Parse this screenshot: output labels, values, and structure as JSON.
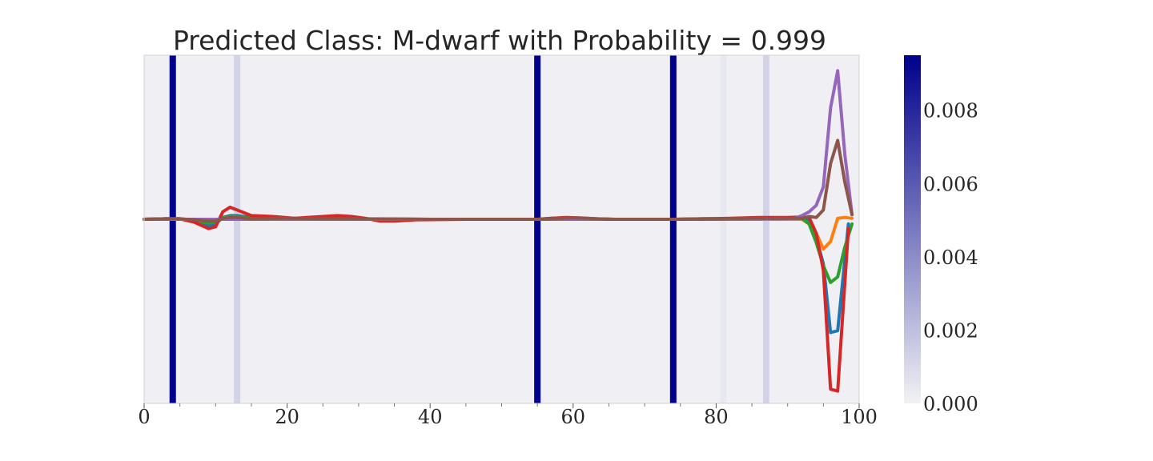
{
  "chart_data": {
    "type": "line",
    "title": "Predicted Class: M-dwarf with Probability = 0.999",
    "xlabel": "",
    "ylabel": "",
    "xlim": [
      0,
      100
    ],
    "ylim": [
      -1,
      1
    ],
    "x_ticks": [
      0,
      20,
      40,
      60,
      80,
      100
    ],
    "x_tick_labels": [
      "0",
      "20",
      "40",
      "60",
      "80",
      "100"
    ],
    "x_minor_ticks": [
      5,
      10,
      15,
      25,
      30,
      35,
      45,
      50,
      55,
      65,
      70,
      75,
      85,
      90,
      95
    ],
    "grid": false,
    "legend": "none",
    "background_color": "#f0f0f4",
    "line_colors": [
      "#1f77b4",
      "#ff7f0e",
      "#2ca02c",
      "#d62728",
      "#9467bd",
      "#8c564b"
    ],
    "attribution_bands": [
      {
        "index": 4,
        "value": 0.0095
      },
      {
        "index": 13,
        "value": 0.0012
      },
      {
        "index": 55,
        "value": 0.0095
      },
      {
        "index": 74,
        "value": 0.0095
      },
      {
        "index": 81,
        "value": 0.0004
      },
      {
        "index": 87,
        "value": 0.0012
      }
    ],
    "colorbar": {
      "min": 0.0,
      "max": 0.0095,
      "colormap_low": "#f2f2f5",
      "colormap_high": "#00008b",
      "ticks": [
        0.0,
        0.002,
        0.004,
        0.006,
        0.008
      ],
      "tick_labels": [
        "0.000",
        "0.002",
        "0.004",
        "0.006",
        "0.008"
      ]
    },
    "series": [
      {
        "values": [
          [
            0,
            0
          ],
          [
            3,
            0.005
          ],
          [
            5,
            0.005
          ],
          [
            7,
            -0.02
          ],
          [
            9,
            -0.07
          ],
          [
            10,
            -0.05
          ],
          [
            11,
            0.02
          ],
          [
            12,
            0.04
          ],
          [
            13,
            0.04
          ],
          [
            15,
            0.02
          ],
          [
            18,
            0.01
          ],
          [
            21,
            0.005
          ],
          [
            25,
            0.01
          ],
          [
            28,
            0.01
          ],
          [
            31,
            0.005
          ],
          [
            34,
            -0.005
          ],
          [
            38,
            0
          ],
          [
            50,
            0
          ],
          [
            55,
            0
          ],
          [
            57,
            0.01
          ],
          [
            59,
            0.015
          ],
          [
            61,
            0.01
          ],
          [
            63,
            0.005
          ],
          [
            66,
            0
          ],
          [
            70,
            0
          ],
          [
            74,
            0
          ],
          [
            78,
            0.005
          ],
          [
            82,
            0.005
          ],
          [
            86,
            0.01
          ],
          [
            90,
            0.01
          ],
          [
            92,
            0.01
          ],
          [
            93,
            -0.02
          ],
          [
            94,
            -0.2
          ],
          [
            95,
            -0.48
          ],
          [
            96,
            -1.22
          ],
          [
            97,
            -1.2
          ],
          [
            98.5,
            -0.05
          ]
        ]
      },
      {
        "values": [
          [
            0,
            0
          ],
          [
            10,
            0
          ],
          [
            20,
            0
          ],
          [
            40,
            0
          ],
          [
            60,
            0
          ],
          [
            80,
            0
          ],
          [
            90,
            0
          ],
          [
            92,
            0
          ],
          [
            93,
            -0.05
          ],
          [
            94,
            -0.15
          ],
          [
            95,
            -0.32
          ],
          [
            96,
            -0.24
          ],
          [
            97,
            0.01
          ],
          [
            98,
            0.02
          ],
          [
            99,
            0.01
          ]
        ]
      },
      {
        "values": [
          [
            0,
            0
          ],
          [
            3,
            0.005
          ],
          [
            5,
            0.005
          ],
          [
            7,
            -0.015
          ],
          [
            9,
            -0.04
          ],
          [
            10,
            -0.03
          ],
          [
            11,
            0.02
          ],
          [
            12,
            0.03
          ],
          [
            13,
            0.03
          ],
          [
            15,
            0.015
          ],
          [
            20,
            0.01
          ],
          [
            30,
            0.005
          ],
          [
            40,
            0
          ],
          [
            55,
            0
          ],
          [
            60,
            0.01
          ],
          [
            65,
            0
          ],
          [
            75,
            0
          ],
          [
            85,
            0.005
          ],
          [
            90,
            0.01
          ],
          [
            92,
            0.01
          ],
          [
            93,
            -0.05
          ],
          [
            94,
            -0.25
          ],
          [
            95,
            -0.5
          ],
          [
            96,
            -0.68
          ],
          [
            97,
            -0.62
          ],
          [
            98,
            -0.3
          ],
          [
            99,
            -0.05
          ]
        ]
      },
      {
        "values": [
          [
            0,
            0
          ],
          [
            3,
            0.005
          ],
          [
            5,
            0.005
          ],
          [
            7,
            -0.03
          ],
          [
            9,
            -0.1
          ],
          [
            10,
            -0.08
          ],
          [
            11,
            0.08
          ],
          [
            12,
            0.13
          ],
          [
            13,
            0.1
          ],
          [
            15,
            0.04
          ],
          [
            18,
            0.03
          ],
          [
            21,
            0.01
          ],
          [
            25,
            0.03
          ],
          [
            27,
            0.04
          ],
          [
            29,
            0.03
          ],
          [
            31,
            0.01
          ],
          [
            33,
            -0.02
          ],
          [
            35,
            -0.02
          ],
          [
            38,
            -0.005
          ],
          [
            45,
            0
          ],
          [
            55,
            0
          ],
          [
            57,
            0.01
          ],
          [
            59,
            0.02
          ],
          [
            61,
            0.015
          ],
          [
            63,
            0.005
          ],
          [
            66,
            0
          ],
          [
            70,
            0
          ],
          [
            74,
            0
          ],
          [
            78,
            0.005
          ],
          [
            82,
            0.01
          ],
          [
            86,
            0.02
          ],
          [
            90,
            0.02
          ],
          [
            92,
            0.025
          ],
          [
            93,
            0.02
          ],
          [
            94,
            -0.15
          ],
          [
            95,
            -0.55
          ],
          [
            96,
            -1.83
          ],
          [
            97,
            -1.85
          ],
          [
            98.5,
            -0.1
          ]
        ]
      },
      {
        "values": [
          [
            0,
            0
          ],
          [
            10,
            0
          ],
          [
            20,
            0
          ],
          [
            40,
            0
          ],
          [
            60,
            0
          ],
          [
            80,
            0
          ],
          [
            89,
            0.005
          ],
          [
            91,
            0.01
          ],
          [
            92,
            0.04
          ],
          [
            93,
            0.08
          ],
          [
            94,
            0.15
          ],
          [
            95,
            0.35
          ],
          [
            96,
            1.2
          ],
          [
            97,
            1.6
          ],
          [
            98,
            0.7
          ],
          [
            99,
            0.05
          ]
        ]
      },
      {
        "values": [
          [
            0,
            0
          ],
          [
            3,
            0.005
          ],
          [
            5,
            0.005
          ],
          [
            7,
            -0.005
          ],
          [
            9,
            -0.02
          ],
          [
            10,
            -0.02
          ],
          [
            11,
            0.01
          ],
          [
            12,
            0.02
          ],
          [
            13,
            0.02
          ],
          [
            15,
            0.005
          ],
          [
            20,
            0.01
          ],
          [
            30,
            0.005
          ],
          [
            40,
            0
          ],
          [
            55,
            0
          ],
          [
            60,
            0.015
          ],
          [
            62,
            0.01
          ],
          [
            65,
            0
          ],
          [
            75,
            0
          ],
          [
            85,
            0.01
          ],
          [
            90,
            0.01
          ],
          [
            92,
            0.01
          ],
          [
            93,
            0.03
          ],
          [
            94,
            0.02
          ],
          [
            95,
            0.1
          ],
          [
            96,
            0.6
          ],
          [
            97,
            0.85
          ],
          [
            98,
            0.4
          ],
          [
            99,
            0.05
          ]
        ]
      }
    ]
  }
}
